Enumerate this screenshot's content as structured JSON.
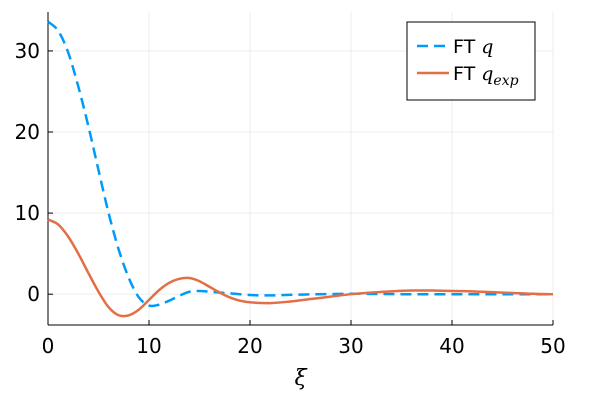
{
  "chart_data": {
    "type": "line",
    "title": "",
    "xlabel": "ξ",
    "ylabel": "",
    "xlim": [
      0,
      50
    ],
    "ylim": [
      -3.8,
      34.8
    ],
    "xticks": [
      0,
      10,
      20,
      30,
      40,
      50
    ],
    "yticks": [
      0,
      10,
      20,
      30
    ],
    "grid": true,
    "legend_position": "top-right",
    "series": [
      {
        "name": "FT q",
        "name_prefix": "FT",
        "name_math": "q",
        "name_sub": "",
        "color": "#009af9",
        "dash": "dashed",
        "x": [
          0,
          1,
          2,
          3,
          4,
          5,
          6,
          7,
          8,
          9,
          10,
          11,
          12,
          13,
          14,
          15,
          16,
          17,
          18,
          20,
          22,
          25,
          30,
          35,
          40,
          45,
          50
        ],
        "y": [
          33.6,
          32.5,
          29.8,
          25.6,
          20.7,
          15.3,
          10.0,
          5.5,
          2.0,
          -0.4,
          -1.4,
          -1.3,
          -0.8,
          -0.2,
          0.3,
          0.4,
          0.3,
          0.2,
          0.1,
          -0.1,
          -0.15,
          -0.05,
          0.05,
          0.0,
          0.0,
          0.0,
          0.0
        ]
      },
      {
        "name": "FT q_exp",
        "name_prefix": "FT",
        "name_math": "q",
        "name_sub": "exp",
        "color": "#e26f46",
        "dash": "solid",
        "x": [
          0,
          1,
          2,
          3,
          4,
          5,
          6,
          7,
          8,
          9,
          10,
          11,
          12,
          13,
          14,
          15,
          16,
          17,
          18,
          19,
          20,
          22,
          24,
          26,
          28,
          30,
          32,
          34,
          36,
          38,
          40,
          42,
          44,
          46,
          48,
          50
        ],
        "y": [
          9.2,
          8.6,
          7.1,
          5.0,
          2.6,
          0.3,
          -1.6,
          -2.6,
          -2.6,
          -1.9,
          -0.7,
          0.5,
          1.4,
          1.9,
          2.0,
          1.6,
          0.9,
          0.2,
          -0.4,
          -0.8,
          -1.0,
          -1.1,
          -0.9,
          -0.6,
          -0.3,
          0.0,
          0.2,
          0.35,
          0.45,
          0.45,
          0.4,
          0.35,
          0.25,
          0.15,
          0.05,
          0.0
        ]
      }
    ]
  }
}
